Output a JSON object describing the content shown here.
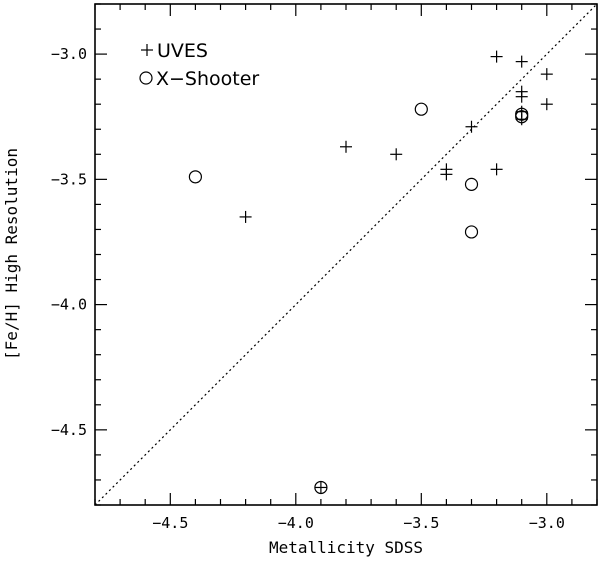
{
  "chart_data": {
    "type": "scatter",
    "title": "",
    "xlabel": "Metallicity SDSS",
    "ylabel": "[Fe/H] High Resolution",
    "xlim": [
      -4.8,
      -2.8
    ],
    "ylim": [
      -4.8,
      -2.8
    ],
    "x_ticks": [
      -4.5,
      -4.0,
      -3.5,
      -3.0
    ],
    "x_tick_labels": [
      "−4.5",
      "−4.0",
      "−3.5",
      "−3.0"
    ],
    "y_ticks": [
      -4.5,
      -4.0,
      -3.5,
      -3.0
    ],
    "y_tick_labels": [
      "−4.5",
      "−4.0",
      "−3.5",
      "−3.0"
    ],
    "grid": false,
    "legend_position": "top-left",
    "one_to_one_line": true,
    "series": [
      {
        "name": "UVES",
        "marker": "plus",
        "x": [
          -4.2,
          -3.9,
          -3.8,
          -3.6,
          -3.4,
          -3.4,
          -3.3,
          -3.2,
          -3.2,
          -3.1,
          -3.1,
          -3.1,
          -3.1,
          -3.1,
          -3.0,
          -3.0
        ],
        "y": [
          -3.65,
          -4.73,
          -3.37,
          -3.4,
          -3.46,
          -3.48,
          -3.29,
          -3.01,
          -3.46,
          -3.03,
          -3.15,
          -3.17,
          -3.23,
          -3.26,
          -3.08,
          -3.2
        ]
      },
      {
        "name": "X−Shooter",
        "marker": "circle",
        "x": [
          -4.4,
          -3.9,
          -3.5,
          -3.3,
          -3.3,
          -3.1,
          -3.1
        ],
        "y": [
          -3.49,
          -4.73,
          -3.22,
          -3.52,
          -3.71,
          -3.24,
          -3.25
        ]
      }
    ]
  }
}
